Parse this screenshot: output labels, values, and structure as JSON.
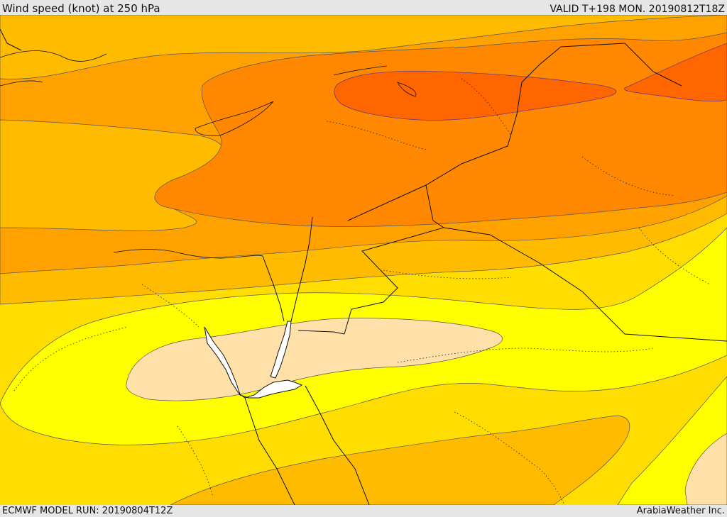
{
  "header": {
    "title": "Wind speed (knot) at 250 hPa",
    "valid_time": "VALID T+198 MON. 20190812T18Z"
  },
  "footer": {
    "model_run": "ECMWF MODEL RUN: 20190804T12Z",
    "credit": "ArabiaWeather Inc."
  },
  "map": {
    "colors": {
      "band_lightest": "#ffe0a8",
      "band_yellow": "#ffff00",
      "band_gold": "#ffdd00",
      "band_amber": "#ffbb00",
      "band_orange": "#ffa200",
      "band_dark_orange": "#ff8800",
      "band_red_orange": "#ff6600",
      "water_white": "#ffffff"
    }
  }
}
